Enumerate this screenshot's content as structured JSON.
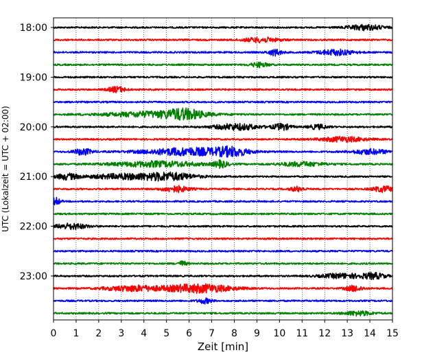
{
  "chart_data": {
    "type": "line",
    "title": "",
    "xlabel": "Zeit  [min]",
    "ylabel": "UTC (Lokalzeit = UTC + 02:00)",
    "xlim": [
      0,
      15
    ],
    "x_ticks": [
      0,
      1,
      2,
      3,
      4,
      5,
      6,
      7,
      8,
      9,
      10,
      11,
      12,
      13,
      14,
      15
    ],
    "grid": "vertical-dotted",
    "trace_interval_min": 15,
    "hour_tick_labels": [
      "18:00",
      "19:00",
      "20:00",
      "21:00",
      "22:00",
      "23:00"
    ],
    "colors": [
      "#000000",
      "#ff0000",
      "#0000ff",
      "#008000"
    ],
    "traces": [
      {
        "start": "18:00",
        "color": "#000000",
        "bursts": [
          [
            13.8,
            0.8,
            1.7
          ]
        ]
      },
      {
        "start": "18:15",
        "color": "#ff0000",
        "bursts": [
          [
            9.2,
            0.8,
            1.5
          ]
        ]
      },
      {
        "start": "18:30",
        "color": "#0000ff",
        "bursts": [
          [
            9.8,
            0.3,
            2.0
          ],
          [
            12.5,
            0.8,
            1.8
          ]
        ]
      },
      {
        "start": "18:45",
        "color": "#008000",
        "bursts": [
          [
            9.1,
            0.4,
            1.5
          ]
        ]
      },
      {
        "start": "19:00",
        "color": "#000000",
        "bursts": []
      },
      {
        "start": "19:15",
        "color": "#ff0000",
        "bursts": [
          [
            2.8,
            0.4,
            1.8
          ]
        ]
      },
      {
        "start": "19:30",
        "color": "#0000ff",
        "bursts": []
      },
      {
        "start": "19:45",
        "color": "#008000",
        "bursts": [
          [
            4.5,
            2.2,
            1.8
          ],
          [
            5.8,
            0.8,
            2.6
          ]
        ]
      },
      {
        "start": "20:00",
        "color": "#000000",
        "bursts": [
          [
            8.1,
            1.0,
            2.0
          ],
          [
            10.1,
            0.4,
            2.0
          ],
          [
            11.7,
            0.4,
            1.5
          ]
        ]
      },
      {
        "start": "20:15",
        "color": "#ff0000",
        "bursts": [
          [
            12.8,
            1.0,
            1.6
          ]
        ]
      },
      {
        "start": "20:30",
        "color": "#0000ff",
        "bursts": [
          [
            1.3,
            0.4,
            2.1
          ],
          [
            6.0,
            2.0,
            2.5
          ],
          [
            7.9,
            0.7,
            2.3
          ],
          [
            14.0,
            0.8,
            1.6
          ]
        ]
      },
      {
        "start": "20:45",
        "color": "#008000",
        "bursts": [
          [
            4.6,
            2.0,
            1.8
          ],
          [
            7.4,
            0.3,
            2.1
          ],
          [
            11.0,
            1.0,
            1.4
          ]
        ]
      },
      {
        "start": "21:00",
        "color": "#000000",
        "bursts": [
          [
            0.6,
            0.5,
            1.8
          ],
          [
            3.0,
            1.5,
            1.6
          ],
          [
            5.1,
            1.2,
            2.4
          ]
        ]
      },
      {
        "start": "21:15",
        "color": "#ff0000",
        "bursts": [
          [
            5.4,
            0.6,
            2.0
          ],
          [
            10.8,
            0.3,
            1.6
          ],
          [
            14.6,
            0.5,
            1.8
          ]
        ]
      },
      {
        "start": "21:30",
        "color": "#0000ff",
        "bursts": [
          [
            0.1,
            0.2,
            2.3
          ]
        ]
      },
      {
        "start": "21:45",
        "color": "#008000",
        "bursts": []
      },
      {
        "start": "22:00",
        "color": "#000000",
        "bursts": [
          [
            0.8,
            0.7,
            1.8
          ]
        ]
      },
      {
        "start": "22:15",
        "color": "#ff0000",
        "bursts": []
      },
      {
        "start": "22:30",
        "color": "#0000ff",
        "bursts": []
      },
      {
        "start": "22:45",
        "color": "#008000",
        "bursts": [
          [
            5.7,
            0.2,
            1.5
          ]
        ]
      },
      {
        "start": "23:00",
        "color": "#000000",
        "bursts": [
          [
            12.8,
            1.0,
            1.5
          ],
          [
            14.2,
            0.5,
            1.8
          ]
        ]
      },
      {
        "start": "23:15",
        "color": "#ff0000",
        "bursts": [
          [
            3.5,
            1.2,
            1.8
          ],
          [
            6.4,
            1.5,
            2.8
          ],
          [
            13.3,
            0.4,
            1.8
          ]
        ]
      },
      {
        "start": "23:30",
        "color": "#0000ff",
        "bursts": [
          [
            6.7,
            0.3,
            1.6
          ]
        ]
      },
      {
        "start": "23:45",
        "color": "#008000",
        "bursts": [
          [
            13.5,
            0.6,
            1.5
          ]
        ]
      }
    ]
  }
}
